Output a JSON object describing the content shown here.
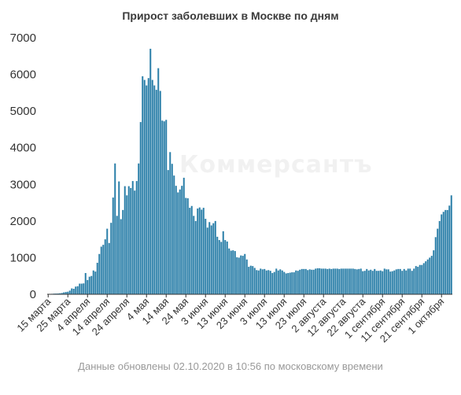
{
  "chart_data": {
    "type": "bar",
    "title": "Прирост заболевших в Москве по дням",
    "xlabel": "",
    "ylabel": "",
    "ylim": [
      0,
      7000
    ],
    "yticks": [
      0,
      1000,
      2000,
      3000,
      4000,
      5000,
      6000,
      7000
    ],
    "xtick_labels": [
      "15 марта",
      "25 марта",
      "4 апреля",
      "14 апреля",
      "24 апреля",
      "4 мая",
      "14 мая",
      "24 мая",
      "3 июня",
      "13 июня",
      "23 июня",
      "3 июля",
      "13 июля",
      "23 июля",
      "2 августа",
      "12 августа",
      "22 августа",
      "1 сентября",
      "11 сентября",
      "21 сентября",
      "1 октября"
    ],
    "grid": false,
    "bar_color": "#2a7fa8",
    "series": [
      {
        "values": [
          4,
          10,
          13,
          18,
          20,
          22,
          28,
          35,
          53,
          63,
          70,
          100,
          160,
          150,
          210,
          220,
          290,
          290,
          297,
          580,
          390,
          480,
          500,
          650,
          620,
          860,
          1100,
          1300,
          1350,
          1500,
          1790,
          1400,
          1950,
          2640,
          3570,
          2140,
          3080,
          2050,
          2300,
          2950,
          2700,
          2950,
          2900,
          3090,
          2830,
          3090,
          3570,
          4700,
          5950,
          5850,
          5700,
          5900,
          6700,
          5850,
          5700,
          5580,
          6170,
          5550,
          4740,
          4720,
          4760,
          3390,
          3880,
          3560,
          3240,
          2960,
          2780,
          2860,
          2960,
          3180,
          2630,
          2620,
          2360,
          2410,
          2140,
          2000,
          2340,
          2370,
          2310,
          2360,
          2060,
          1820,
          1970,
          1880,
          1940,
          2000,
          1570,
          1480,
          1430,
          1720,
          1480,
          1440,
          1250,
          1190,
          1200,
          1180,
          1010,
          1000,
          1060,
          1050,
          1100,
          950,
          750,
          780,
          770,
          720,
          660,
          650,
          700,
          680,
          690,
          650,
          660,
          640,
          580,
          610,
          700,
          650,
          680,
          650,
          610,
          570,
          580,
          590,
          600,
          600,
          650,
          640,
          670,
          690,
          690,
          690,
          660,
          680,
          670,
          670,
          700,
          710,
          710,
          700,
          700,
          700,
          690,
          700,
          690,
          700,
          700,
          700,
          690,
          700,
          700,
          700,
          700,
          700,
          700,
          700,
          690,
          680,
          690,
          700,
          630,
          640,
          690,
          650,
          670,
          640,
          690,
          640,
          640,
          650,
          630,
          700,
          680,
          680,
          620,
          630,
          650,
          680,
          690,
          690,
          640,
          690,
          650,
          700,
          700,
          640,
          700,
          770,
          750,
          800,
          800,
          850,
          900,
          950,
          1000,
          1050,
          1200,
          1560,
          1790,
          2000,
          2180,
          2250,
          2300,
          2300,
          2420,
          2700
        ]
      }
    ]
  },
  "footer": {
    "note": "Данные обновлены 02.10.2020 в 10:56 по московскому времени"
  },
  "watermark": "Коммерсантъ"
}
